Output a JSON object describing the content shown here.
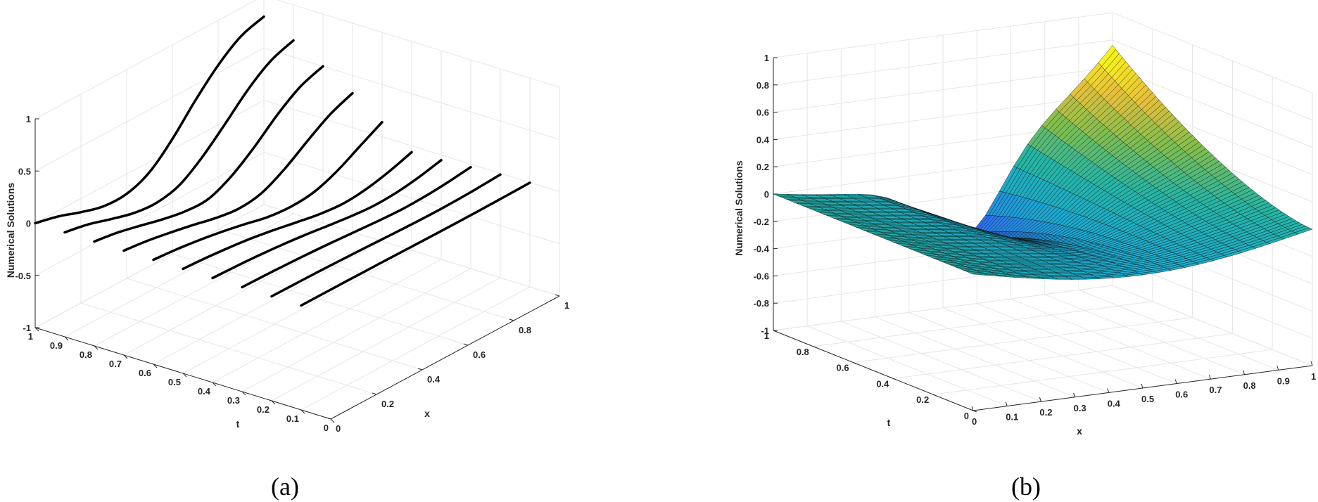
{
  "chart_data": [
    {
      "panel": "a",
      "caption": "(a)",
      "type": "line",
      "zlabel": "Numerical Solutions",
      "xlabel": "x",
      "ylabel": "t",
      "xlim": [
        0,
        1
      ],
      "tlim": [
        0,
        1
      ],
      "zlim": [
        -1,
        1
      ],
      "x_ticks": [
        "0",
        "0.2",
        "0.4",
        "0.6",
        "0.8",
        "1"
      ],
      "t_ticks": [
        "0",
        "0.1",
        "0.2",
        "0.3",
        "0.4",
        "0.5",
        "0.6",
        "0.7",
        "0.8",
        "0.9",
        "1"
      ],
      "z_ticks": [
        "-1",
        "-0.5",
        "0",
        "0.5",
        "1"
      ],
      "grid": true,
      "curve_color": "#000000",
      "x": [
        0,
        0.1,
        0.2,
        0.3,
        0.4,
        0.5,
        0.6,
        0.7,
        0.8,
        0.9,
        1
      ],
      "series": [
        {
          "t": 0.1,
          "values": [
            0,
            0,
            -0.001,
            -0.002,
            -0.004,
            -0.006,
            -0.008,
            -0.009,
            -0.008,
            -0.006,
            -0.003
          ]
        },
        {
          "t": 0.2,
          "values": [
            0,
            -0.002,
            -0.005,
            -0.01,
            -0.016,
            -0.024,
            -0.031,
            -0.035,
            -0.033,
            -0.025,
            -0.012
          ]
        },
        {
          "t": 0.3,
          "values": [
            0,
            -0.005,
            -0.012,
            -0.022,
            -0.036,
            -0.052,
            -0.068,
            -0.078,
            -0.073,
            -0.055,
            -0.028
          ]
        },
        {
          "t": 0.4,
          "values": [
            0,
            -0.009,
            -0.021,
            -0.039,
            -0.063,
            -0.092,
            -0.12,
            -0.138,
            -0.13,
            -0.098,
            -0.049
          ]
        },
        {
          "t": 0.5,
          "values": [
            0,
            -0.013,
            -0.033,
            -0.06,
            -0.097,
            -0.14,
            -0.18,
            -0.2,
            -0.18,
            -0.13,
            -0.06
          ]
        },
        {
          "t": 0.6,
          "values": [
            0,
            -0.019,
            -0.048,
            -0.085,
            -0.13,
            -0.18,
            -0.2,
            -0.18,
            -0.1,
            0.02,
            0.14
          ]
        },
        {
          "t": 0.7,
          "values": [
            0,
            -0.026,
            -0.065,
            -0.11,
            -0.16,
            -0.19,
            -0.16,
            -0.05,
            0.1,
            0.24,
            0.33
          ]
        },
        {
          "t": 0.8,
          "values": [
            0,
            -0.034,
            -0.085,
            -0.14,
            -0.18,
            -0.18,
            -0.08,
            0.08,
            0.27,
            0.42,
            0.5
          ]
        },
        {
          "t": 0.9,
          "values": [
            0,
            -0.043,
            -0.11,
            -0.17,
            -0.19,
            -0.14,
            0.01,
            0.21,
            0.42,
            0.58,
            0.66
          ]
        },
        {
          "t": 1.0,
          "values": [
            0,
            -0.053,
            -0.13,
            -0.19,
            -0.19,
            -0.1,
            0.1,
            0.35,
            0.57,
            0.73,
            0.8
          ]
        }
      ]
    },
    {
      "panel": "b",
      "caption": "(b)",
      "type": "surface",
      "zlabel": "Numerical Solutions",
      "xlabel": "x",
      "ylabel": "t",
      "xlim": [
        0,
        1
      ],
      "tlim": [
        0,
        1
      ],
      "zlim": [
        -1,
        1
      ],
      "x_ticks": [
        "0",
        "0.1",
        "0.2",
        "0.3",
        "0.4",
        "0.5",
        "0.6",
        "0.7",
        "0.8",
        "0.9",
        "1"
      ],
      "t_ticks": [
        "0",
        "0.2",
        "0.4",
        "0.6",
        "0.8",
        "1"
      ],
      "z_ticks": [
        "-1",
        "-0.8",
        "-0.6",
        "-0.4",
        "-0.2",
        "0",
        "0.2",
        "0.4",
        "0.6",
        "0.8",
        "1"
      ],
      "grid": true,
      "colormap": [
        "#3e26a8",
        "#2f6ff1",
        "#1aa8d0",
        "#25b5a5",
        "#7fbe4f",
        "#e8c03a",
        "#f9fb15"
      ],
      "min_value": -0.65,
      "max_value": 0.72
    }
  ],
  "captions": {
    "a": "(a)",
    "b": "(b)"
  }
}
